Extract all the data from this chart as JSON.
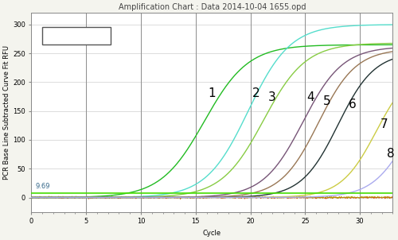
{
  "title": "Amplification Chart : Data 2014-10-04 1655.opd",
  "xlabel": "Cycle",
  "ylabel": "PCR Base Line Subtracted Curve Fit RFU",
  "xlim": [
    0,
    33
  ],
  "ylim": [
    -25,
    320
  ],
  "yticks": [
    0,
    50,
    100,
    150,
    200,
    250,
    300
  ],
  "xticks": [
    0,
    5,
    10,
    15,
    20,
    25,
    30
  ],
  "threshold_y": 9.69,
  "threshold_label": "9.69",
  "curves": [
    {
      "label": "1",
      "color": "#22bb22",
      "midpoint": 15.8,
      "ymax": 265,
      "steepness": 0.5
    },
    {
      "label": "2",
      "color": "#55ddcc",
      "midpoint": 19.8,
      "ymax": 300,
      "steepness": 0.52
    },
    {
      "label": "3",
      "color": "#88cc44",
      "midpoint": 21.2,
      "ymax": 268,
      "steepness": 0.52
    },
    {
      "label": "4",
      "color": "#775577",
      "midpoint": 24.8,
      "ymax": 262,
      "steepness": 0.55
    },
    {
      "label": "5",
      "color": "#997755",
      "midpoint": 26.2,
      "ymax": 258,
      "steepness": 0.58
    },
    {
      "label": "6",
      "color": "#223333",
      "midpoint": 28.0,
      "ymax": 252,
      "steepness": 0.6
    },
    {
      "label": "7",
      "color": "#cccc44",
      "midpoint": 31.5,
      "ymax": 230,
      "steepness": 0.62
    },
    {
      "label": "8",
      "color": "#aaaaee",
      "midpoint": 34.5,
      "ymax": 220,
      "steepness": 0.6
    }
  ],
  "flat_green_y": 7,
  "vlines": [
    5,
    10,
    15,
    20,
    25,
    30
  ],
  "bg_color": "#f4f4ee",
  "plot_bg": "#ffffff",
  "grid_color": "#999999",
  "title_fontsize": 7,
  "axis_fontsize": 6,
  "tick_fontsize": 6,
  "label_fontsize": 11,
  "label_positions": [
    [
      16.5,
      175,
      "1"
    ],
    [
      20.5,
      175,
      "2"
    ],
    [
      22.0,
      168,
      "3"
    ],
    [
      25.5,
      168,
      "4"
    ],
    [
      27.0,
      160,
      "5"
    ],
    [
      29.3,
      155,
      "6"
    ],
    [
      32.2,
      120,
      "7"
    ],
    [
      32.8,
      70,
      "8"
    ]
  ]
}
